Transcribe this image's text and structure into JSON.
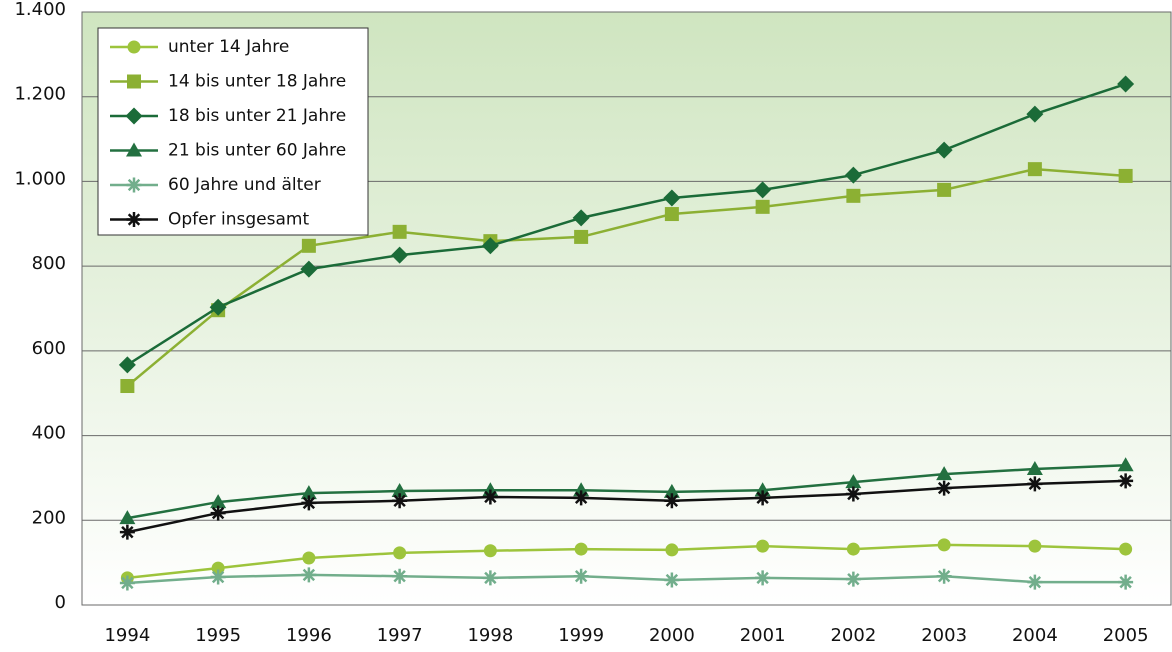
{
  "chart_data": {
    "type": "line",
    "categories": [
      "1994",
      "1995",
      "1996",
      "1997",
      "1998",
      "1999",
      "2000",
      "2001",
      "2002",
      "2003",
      "2004",
      "2005"
    ],
    "series": [
      {
        "name": "unter 14 Jahre",
        "color": "#9dc43c",
        "marker": "circle",
        "values": [
          64,
          87,
          111,
          123,
          128,
          132,
          130,
          139,
          132,
          142,
          139,
          132
        ]
      },
      {
        "name": "14 bis unter 18 Jahre",
        "color": "#8cb033",
        "marker": "square",
        "values": [
          517,
          696,
          848,
          881,
          859,
          869,
          923,
          940,
          966,
          980,
          1029,
          1013
        ]
      },
      {
        "name": "18 bis unter 21 Jahre",
        "color": "#1b6b38",
        "marker": "diamond",
        "values": [
          567,
          703,
          793,
          826,
          848,
          914,
          961,
          980,
          1015,
          1074,
          1159,
          1230
        ]
      },
      {
        "name": "21 bis unter 60 Jahre",
        "color": "#237040",
        "marker": "triangle",
        "values": [
          205,
          243,
          264,
          269,
          271,
          271,
          267,
          271,
          290,
          309,
          321,
          330
        ]
      },
      {
        "name": "60 Jahre und älter",
        "color": "#72ae8c",
        "marker": "asterisk",
        "values": [
          52,
          66,
          71,
          68,
          64,
          68,
          59,
          64,
          61,
          68,
          54,
          54
        ]
      },
      {
        "name": "Opfer insgesamt",
        "color": "#111111",
        "marker": "asterisk",
        "values": [
          172,
          217,
          241,
          246,
          255,
          253,
          246,
          253,
          262,
          276,
          286,
          293
        ]
      }
    ],
    "ylim": [
      0,
      1400
    ],
    "yticks": [
      0,
      200,
      400,
      600,
      800,
      {
        "value": 1000,
        "label": "1.000"
      },
      {
        "value": 1200,
        "label": "1.200"
      },
      {
        "value": 1400,
        "label": "1.400"
      }
    ],
    "grid": true,
    "legend": "upper-left"
  }
}
